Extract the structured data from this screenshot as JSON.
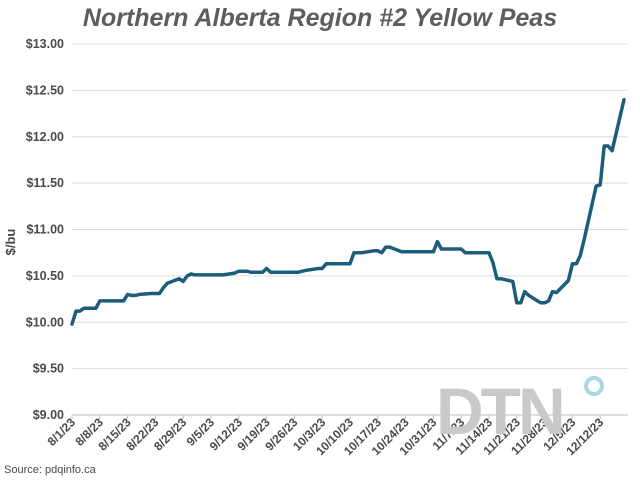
{
  "chart_data": {
    "type": "line",
    "title": "Northern Alberta Region #2 Yellow Peas",
    "ylabel": "$/bu",
    "xlabel": "",
    "source": "Source: pdqinfo.ca",
    "watermark": "DTN",
    "ylim": [
      9.0,
      13.0
    ],
    "yticks": [
      9.0,
      9.5,
      10.0,
      10.5,
      11.0,
      11.5,
      12.0,
      12.5,
      13.0
    ],
    "ytick_labels": [
      "$9.00",
      "$9.50",
      "$10.00",
      "$10.50",
      "$11.00",
      "$11.50",
      "$12.00",
      "$12.50",
      "$13.00"
    ],
    "xticks": [
      "8/1/23",
      "8/8/23",
      "8/15/23",
      "8/22/23",
      "8/29/23",
      "9/5/23",
      "9/12/23",
      "9/19/23",
      "9/26/23",
      "10/3/23",
      "10/10/23",
      "10/17/23",
      "10/24/23",
      "10/31/23",
      "11/7/23",
      "11/14/23",
      "11/21/23",
      "11/28/23",
      "12/5/23",
      "12/12/23"
    ],
    "xlim": [
      "2023-08-01",
      "2023-12-19"
    ],
    "grid": "horizontal",
    "line_color": "#1c5d7c",
    "series": [
      {
        "name": "",
        "x": [
          "2023-08-01",
          "2023-08-02",
          "2023-08-03",
          "2023-08-04",
          "2023-08-07",
          "2023-08-08",
          "2023-08-09",
          "2023-08-10",
          "2023-08-11",
          "2023-08-14",
          "2023-08-15",
          "2023-08-16",
          "2023-08-17",
          "2023-08-18",
          "2023-08-21",
          "2023-08-22",
          "2023-08-23",
          "2023-08-24",
          "2023-08-25",
          "2023-08-28",
          "2023-08-29",
          "2023-08-30",
          "2023-08-31",
          "2023-09-01",
          "2023-09-05",
          "2023-09-06",
          "2023-09-07",
          "2023-09-08",
          "2023-09-11",
          "2023-09-12",
          "2023-09-13",
          "2023-09-14",
          "2023-09-15",
          "2023-09-18",
          "2023-09-19",
          "2023-09-20",
          "2023-09-21",
          "2023-09-22",
          "2023-09-25",
          "2023-09-26",
          "2023-09-27",
          "2023-09-28",
          "2023-09-29",
          "2023-10-02",
          "2023-10-03",
          "2023-10-04",
          "2023-10-05",
          "2023-10-06",
          "2023-10-10",
          "2023-10-11",
          "2023-10-12",
          "2023-10-13",
          "2023-10-16",
          "2023-10-17",
          "2023-10-18",
          "2023-10-19",
          "2023-10-20",
          "2023-10-23",
          "2023-10-24",
          "2023-10-25",
          "2023-10-26",
          "2023-10-27",
          "2023-10-30",
          "2023-10-31",
          "2023-11-01",
          "2023-11-02",
          "2023-11-03",
          "2023-11-06",
          "2023-11-07",
          "2023-11-08",
          "2023-11-09",
          "2023-11-10",
          "2023-11-13",
          "2023-11-14",
          "2023-11-15",
          "2023-11-16",
          "2023-11-17",
          "2023-11-20",
          "2023-11-21",
          "2023-11-22",
          "2023-11-23",
          "2023-11-24",
          "2023-11-27",
          "2023-11-28",
          "2023-11-29",
          "2023-11-30",
          "2023-12-01",
          "2023-12-04",
          "2023-12-05",
          "2023-12-06",
          "2023-12-07",
          "2023-12-08",
          "2023-12-11",
          "2023-12-12",
          "2023-12-13",
          "2023-12-14",
          "2023-12-15",
          "2023-12-18"
        ],
        "y": [
          9.98,
          10.12,
          10.12,
          10.15,
          10.15,
          10.23,
          10.23,
          10.23,
          10.23,
          10.23,
          10.3,
          10.29,
          10.29,
          10.3,
          10.31,
          10.31,
          10.31,
          10.37,
          10.42,
          10.47,
          10.44,
          10.5,
          10.52,
          10.51,
          10.51,
          10.51,
          10.51,
          10.51,
          10.53,
          10.55,
          10.55,
          10.55,
          10.54,
          10.54,
          10.58,
          10.54,
          10.54,
          10.54,
          10.54,
          10.54,
          10.54,
          10.55,
          10.56,
          10.58,
          10.58,
          10.63,
          10.63,
          10.63,
          10.63,
          10.75,
          10.75,
          10.75,
          10.77,
          10.77,
          10.75,
          10.81,
          10.81,
          10.76,
          10.76,
          10.76,
          10.76,
          10.76,
          10.76,
          10.76,
          10.87,
          10.79,
          10.79,
          10.79,
          10.79,
          10.75,
          10.75,
          10.75,
          10.75,
          10.75,
          10.64,
          10.47,
          10.47,
          10.44,
          10.21,
          10.21,
          10.33,
          10.29,
          10.21,
          10.21,
          10.23,
          10.33,
          10.32,
          10.45,
          10.63,
          10.63,
          10.72,
          10.9,
          11.47,
          11.48,
          11.9,
          11.9,
          11.85,
          12.4
        ]
      }
    ]
  }
}
